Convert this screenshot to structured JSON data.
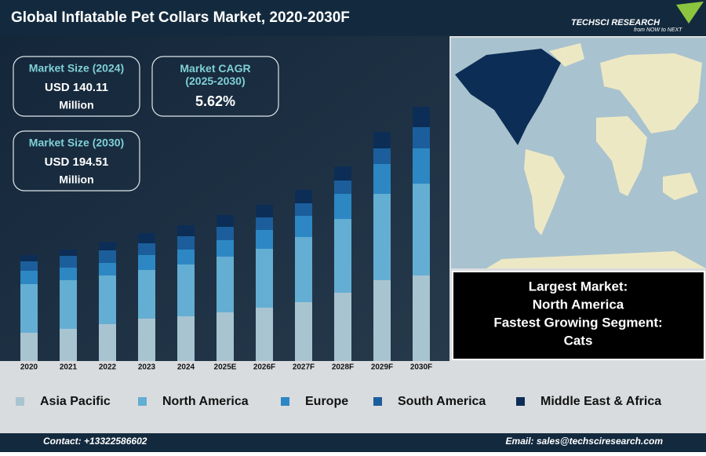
{
  "header": {
    "title": "Global Inflatable Pet Collars Market, 2020-2030F",
    "logo": "TECHSCI RESEARCH",
    "tagline": "from NOW to NEXT"
  },
  "stats": [
    {
      "label": "Market Size (2024)",
      "value": "USD 140.11",
      "unit": "Million"
    },
    {
      "label": "Market CAGR (2025-2030)",
      "value": "5.62%"
    },
    {
      "label": "Market Size (2030)",
      "value": "USD 194.51",
      "unit": "Million"
    }
  ],
  "info": [
    "Largest Market:",
    "North America",
    "Fastest Growing Segment:",
    "Cats"
  ],
  "chart_data": {
    "type": "stacked-bar",
    "categories": [
      "2020",
      "2021",
      "2022",
      "2023",
      "2024",
      "2025E",
      "2026F",
      "2027F",
      "2028F",
      "2029F",
      "2030F"
    ],
    "series": [
      {
        "name": "Asia Pacific",
        "color": "#a9c4d1",
        "values": [
          36,
          41,
          47,
          54,
          57,
          62,
          68,
          75,
          87,
          103,
          109
        ]
      },
      {
        "name": "North America",
        "color": "#64aed3",
        "values": [
          62,
          62,
          62,
          62,
          66,
          71,
          75,
          83,
          94,
          110,
          117
        ]
      },
      {
        "name": "Europe",
        "color": "#2d87c3",
        "values": [
          17,
          16,
          16,
          19,
          19,
          21,
          24,
          27,
          32,
          38,
          45
        ]
      },
      {
        "name": "South America",
        "color": "#1b5e9b",
        "values": [
          12,
          15,
          16,
          15,
          17,
          17,
          16,
          16,
          17,
          20,
          27
        ]
      },
      {
        "name": "Middle East & Africa",
        "color": "#0c2d55",
        "values": [
          8,
          8,
          11,
          13,
          14,
          15,
          16,
          17,
          18,
          21,
          26
        ]
      }
    ]
  },
  "footer": {
    "contact": "Contact: +13322586602",
    "email": "Email: sales@techsciresearch.com"
  }
}
